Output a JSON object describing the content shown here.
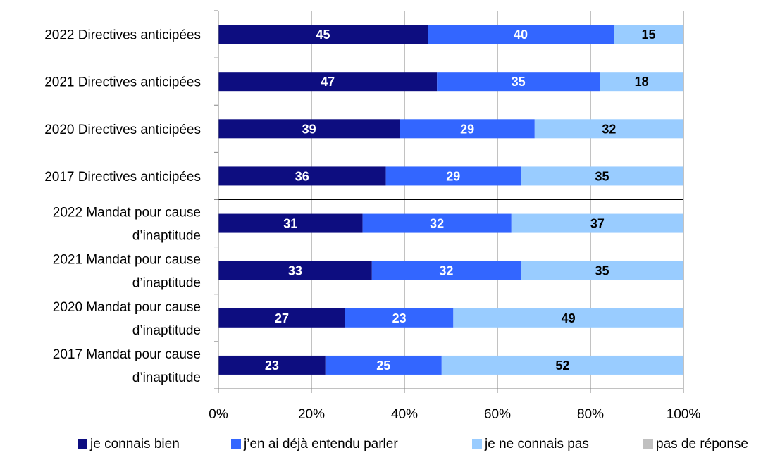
{
  "chart_data": {
    "type": "bar",
    "orientation": "horizontal",
    "stacked": "percent",
    "categories": [
      [
        "2022 Directives anticipées"
      ],
      [
        "2021 Directives anticipées"
      ],
      [
        "2020 Directives anticipées"
      ],
      [
        "2017 Directives anticipées"
      ],
      [
        "2022 Mandat pour cause",
        "d’inaptitude"
      ],
      [
        "2021 Mandat pour cause",
        "d’inaptitude"
      ],
      [
        "2020 Mandat pour cause",
        "d’inaptitude"
      ],
      [
        "2017 Mandat pour cause",
        "d’inaptitude"
      ]
    ],
    "series": [
      {
        "name": "je connais bien",
        "color": "#0D0D80",
        "label_color": "#FFFFFF",
        "values": [
          45,
          47,
          39,
          36,
          31,
          33,
          27,
          23
        ]
      },
      {
        "name": "j’en ai déjà entendu parler",
        "color": "#3366FF",
        "label_color": "#FFFFFF",
        "values": [
          40,
          35,
          29,
          29,
          32,
          32,
          23,
          25
        ]
      },
      {
        "name": "je ne connais pas",
        "color": "#99CCFF",
        "label_color": "#000000",
        "values": [
          15,
          18,
          32,
          35,
          37,
          35,
          49,
          52
        ]
      },
      {
        "name": "pas de réponse",
        "color": "#C0C0C0",
        "label_color": "#000000",
        "values": [
          0,
          0,
          0,
          0,
          0,
          0,
          0,
          0
        ]
      }
    ],
    "x_ticks": [
      "0%",
      "20%",
      "40%",
      "60%",
      "80%",
      "100%"
    ],
    "xlim": [
      0,
      100
    ],
    "grid": "vertical",
    "separator_after_category": 3,
    "legend_position": "bottom"
  }
}
